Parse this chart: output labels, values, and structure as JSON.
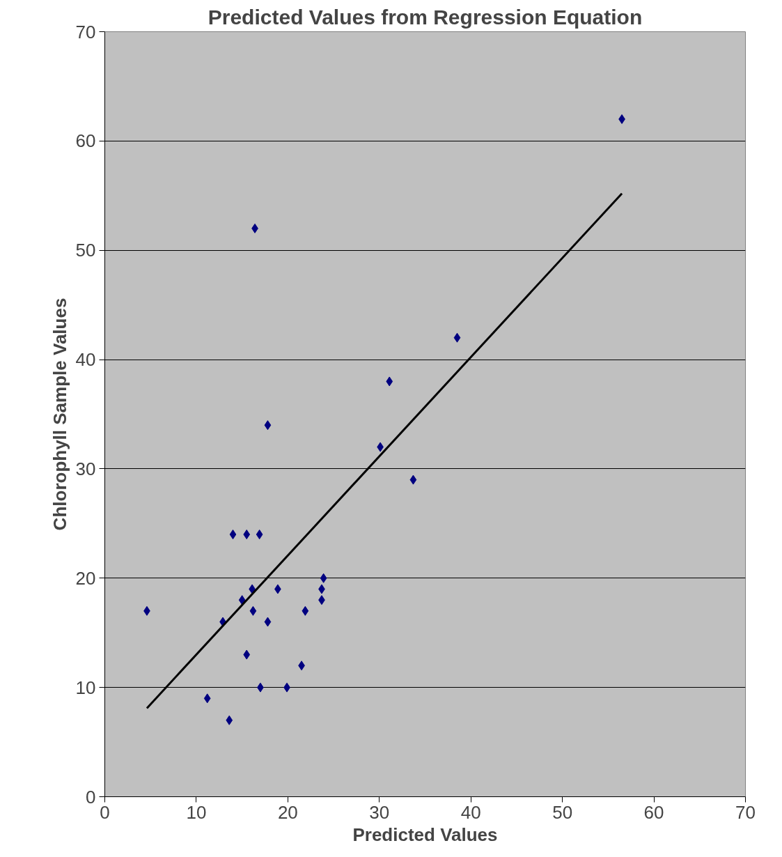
{
  "chart_data": {
    "type": "scatter",
    "title": "Predicted Values from Regression Equation",
    "xlabel": "Predicted Values",
    "ylabel": "Chlorophyll Sample Values",
    "xlim": [
      0,
      70
    ],
    "ylim": [
      0,
      70
    ],
    "xticks": [
      0,
      10,
      20,
      30,
      40,
      50,
      60,
      70
    ],
    "yticks": [
      0,
      10,
      20,
      30,
      40,
      50,
      60,
      70
    ],
    "grid": "y",
    "series": [
      {
        "marker": "diamond",
        "color": "#000080",
        "x": [
          4.6,
          56.5,
          16.4,
          38.5,
          31.1,
          30.1,
          33.7,
          17.8,
          14.0,
          15.5,
          16.9,
          15.0,
          16.1,
          18.9,
          16.2,
          12.9,
          17.8,
          15.5,
          17.0,
          19.9,
          21.5,
          21.9,
          23.7,
          23.7,
          23.9,
          11.2,
          13.6
        ],
        "values": [
          17,
          62,
          52,
          42,
          38,
          32,
          29,
          34,
          24,
          24,
          24,
          18,
          19,
          19,
          17,
          16,
          16,
          13,
          10,
          10,
          12,
          17,
          19,
          18,
          20,
          9,
          7
        ]
      },
      {
        "type": "line",
        "color": "#000000",
        "x": [
          4.6,
          56.5
        ],
        "values": [
          8.1,
          55.2
        ]
      }
    ]
  }
}
